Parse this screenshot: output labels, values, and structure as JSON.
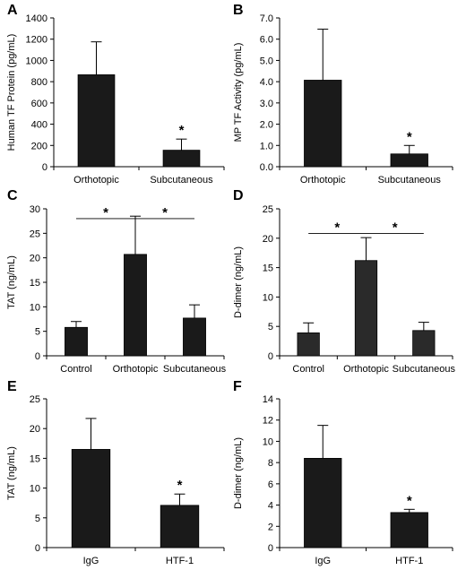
{
  "chart_data": [
    {
      "panel": "A",
      "type": "bar",
      "categories": [
        "Orthotopic",
        "Subcutaneous"
      ],
      "values": [
        865,
        155
      ],
      "errors": [
        310,
        105
      ],
      "ylabel": "Human TF Protein (pg/mL)",
      "ylim": [
        0,
        1400
      ],
      "ystep": 200,
      "decimals": 0,
      "annotations": [
        {
          "text": "*",
          "category": 1
        }
      ],
      "brackets": [],
      "bar_color": "#1a1a1a"
    },
    {
      "panel": "B",
      "type": "bar",
      "categories": [
        "Orthotopic",
        "Subcutaneous"
      ],
      "values": [
        4.07,
        0.6
      ],
      "errors": [
        2.4,
        0.4
      ],
      "ylabel": "MP TF Activity (pg/mL)",
      "ylim": [
        0,
        7
      ],
      "ystep": 1,
      "decimals": 1,
      "annotations": [
        {
          "text": "*",
          "category": 1
        }
      ],
      "brackets": [],
      "bar_color": "#1a1a1a"
    },
    {
      "panel": "C",
      "type": "bar",
      "categories": [
        "Control",
        "Orthotopic",
        "Subcutaneous"
      ],
      "values": [
        5.8,
        20.7,
        7.7
      ],
      "errors": [
        1.2,
        7.8,
        2.7
      ],
      "ylabel": "TAT (ng/mL)",
      "ylim": [
        0,
        30
      ],
      "ystep": 5,
      "decimals": 0,
      "annotations": [],
      "brackets": [
        {
          "text": "*",
          "from": 0,
          "to": 1,
          "y": 28
        },
        {
          "text": "*",
          "from": 1,
          "to": 2,
          "y": 28
        }
      ],
      "bar_color": "#1a1a1a"
    },
    {
      "panel": "D",
      "type": "bar",
      "categories": [
        "Control",
        "Orthotopic",
        "Subcutaneous"
      ],
      "values": [
        3.9,
        16.2,
        4.3
      ],
      "errors": [
        1.7,
        3.9,
        1.4
      ],
      "ylabel": "D-dimer (ng/mL)",
      "ylim": [
        0,
        25
      ],
      "ystep": 5,
      "decimals": 0,
      "annotations": [],
      "brackets": [
        {
          "text": "*",
          "from": 0,
          "to": 1,
          "y": 20.8
        },
        {
          "text": "*",
          "from": 1,
          "to": 2,
          "y": 20.8
        }
      ],
      "bar_color": "#2a2a2a"
    },
    {
      "panel": "E",
      "type": "bar",
      "categories": [
        "IgG",
        "HTF-1"
      ],
      "values": [
        16.5,
        7.1
      ],
      "errors": [
        5.2,
        1.9
      ],
      "ylabel": "TAT (ng/mL)",
      "ylim": [
        0,
        25
      ],
      "ystep": 5,
      "decimals": 0,
      "annotations": [
        {
          "text": "*",
          "category": 1
        }
      ],
      "brackets": [],
      "bar_color": "#1a1a1a"
    },
    {
      "panel": "F",
      "type": "bar",
      "categories": [
        "IgG",
        "HTF-1"
      ],
      "values": [
        8.4,
        3.3
      ],
      "errors": [
        3.1,
        0.3
      ],
      "ylabel": "D-dimer (ng/mL)",
      "ylim": [
        0,
        14
      ],
      "ystep": 2,
      "decimals": 0,
      "annotations": [
        {
          "text": "*",
          "category": 1
        }
      ],
      "brackets": [],
      "bar_color": "#1a1a1a"
    }
  ]
}
